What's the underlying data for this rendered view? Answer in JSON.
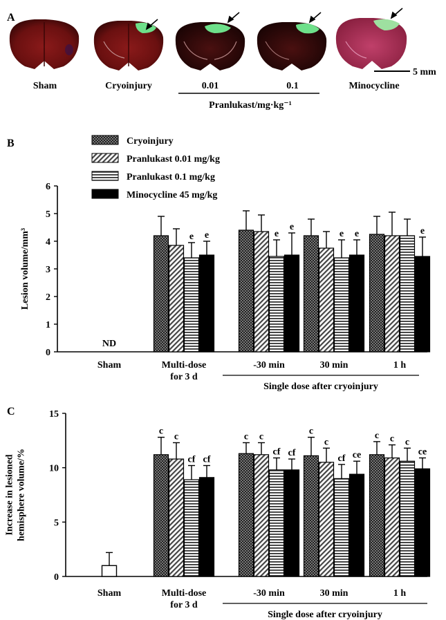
{
  "panel_a": {
    "label": "A",
    "images": [
      "Sham",
      "Cryoinjury",
      "0.01",
      "0.1",
      "Minocycline"
    ],
    "group_label": "Pranlukast/mg·kg⁻¹",
    "scale_bar": "5 mm"
  },
  "panel_b_label": "B",
  "panel_c_label": "C",
  "subgroup_label": "Single dose after cryoinjury",
  "legend": [
    "Cryoinjury",
    "Pranlukast 0.01 mg/kg",
    "Pranlukast 0.1 mg/kg",
    "Minocycline 45 mg/kg"
  ],
  "colors": {
    "cryoinjury": "#555555",
    "minocycline": "#000000",
    "sham_fill": "#ffffff",
    "axis": "#000000"
  },
  "chart_data": [
    {
      "type": "bar",
      "panel": "B",
      "ylabel": "Lesion volume/mm³",
      "xlabel": "",
      "ylim": [
        0,
        6
      ],
      "yticks": [
        0,
        1,
        2,
        3,
        4,
        5,
        6
      ],
      "categories": [
        "Sham",
        "Multi-dose\nfor 3 d",
        "-30 min",
        "30 min",
        "1 h"
      ],
      "sham_annotation": "ND",
      "series": [
        {
          "name": "Cryoinjury",
          "values": [
            null,
            4.2,
            4.4,
            4.2,
            4.25
          ],
          "errors": [
            null,
            0.7,
            0.7,
            0.6,
            0.65
          ],
          "annotations": [
            "",
            "",
            "",
            "",
            ""
          ]
        },
        {
          "name": "Pranlukast 0.01 mg/kg",
          "values": [
            null,
            3.85,
            4.35,
            3.75,
            4.2
          ],
          "errors": [
            null,
            0.6,
            0.6,
            0.6,
            0.85
          ],
          "annotations": [
            "",
            "",
            "",
            "",
            ""
          ]
        },
        {
          "name": "Pranlukast 0.1 mg/kg",
          "values": [
            null,
            3.4,
            3.45,
            3.4,
            4.2
          ],
          "errors": [
            null,
            0.55,
            0.6,
            0.65,
            0.6
          ],
          "annotations": [
            "",
            "e",
            "e",
            "e",
            ""
          ]
        },
        {
          "name": "Minocycline 45 mg/kg",
          "values": [
            null,
            3.5,
            3.5,
            3.5,
            3.45
          ],
          "errors": [
            null,
            0.5,
            0.8,
            0.55,
            0.7
          ],
          "annotations": [
            "",
            "e",
            "e",
            "e",
            "e"
          ]
        }
      ]
    },
    {
      "type": "bar",
      "panel": "C",
      "ylabel": "Increase in lesioned\nhemisphere volume/%",
      "xlabel": "",
      "ylim": [
        0,
        15
      ],
      "yticks": [
        0,
        5,
        10,
        15
      ],
      "categories": [
        "Sham",
        "Multi-dose\nfor 3 d",
        "-30 min",
        "30 min",
        "1 h"
      ],
      "sham": {
        "value": 1.0,
        "error": 1.2
      },
      "series": [
        {
          "name": "Cryoinjury",
          "values": [
            null,
            11.2,
            11.3,
            11.1,
            11.2
          ],
          "errors": [
            null,
            1.6,
            1.0,
            1.7,
            1.2
          ],
          "annotations": [
            "",
            "c",
            "c",
            "c",
            "c"
          ]
        },
        {
          "name": "Pranlukast 0.01 mg/kg",
          "values": [
            null,
            10.8,
            11.2,
            10.5,
            10.9
          ],
          "errors": [
            null,
            1.5,
            1.1,
            1.3,
            1.2
          ],
          "annotations": [
            "",
            "c",
            "c",
            "c",
            "c"
          ]
        },
        {
          "name": "Pranlukast 0.1 mg/kg",
          "values": [
            null,
            8.9,
            9.8,
            9.0,
            10.6
          ],
          "errors": [
            null,
            1.3,
            1.1,
            1.3,
            1.2
          ],
          "annotations": [
            "",
            "cf",
            "cf",
            "cf",
            "c"
          ]
        },
        {
          "name": "Minocycline 45 mg/kg",
          "values": [
            null,
            9.1,
            9.8,
            9.4,
            9.9
          ],
          "errors": [
            null,
            1.1,
            1.0,
            1.2,
            1.0
          ],
          "annotations": [
            "",
            "cf",
            "cf",
            "ce",
            "ce"
          ]
        }
      ]
    }
  ]
}
